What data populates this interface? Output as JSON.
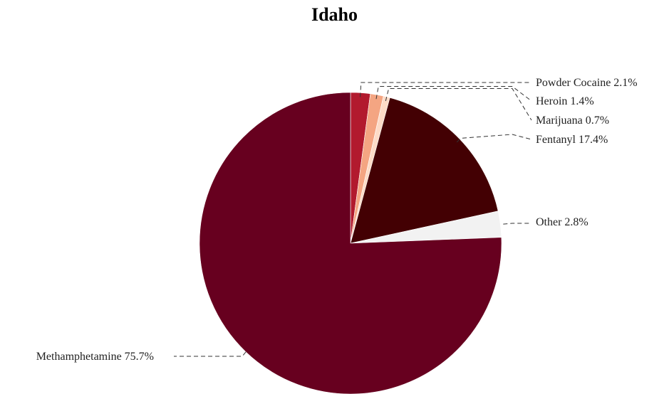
{
  "chart_data": {
    "type": "pie",
    "title": "Idaho",
    "slices": [
      {
        "label": "Powder Cocaine",
        "value": 2.1,
        "display": "2.1%",
        "color": "#b21a2e"
      },
      {
        "label": "Heroin",
        "value": 1.4,
        "display": "1.4%",
        "color": "#f4a582"
      },
      {
        "label": "Marijuana",
        "value": 0.7,
        "display": "0.7%",
        "color": "#fddbc7"
      },
      {
        "label": "Fentanyl",
        "value": 17.4,
        "display": "17.4%",
        "color": "#430003"
      },
      {
        "label": "Other",
        "value": 2.8,
        "display": "2.8%",
        "color": "#f2f2f2"
      },
      {
        "label": "Methamphetamine",
        "value": 75.7,
        "display": "75.7%",
        "color": "#67001f"
      }
    ]
  }
}
